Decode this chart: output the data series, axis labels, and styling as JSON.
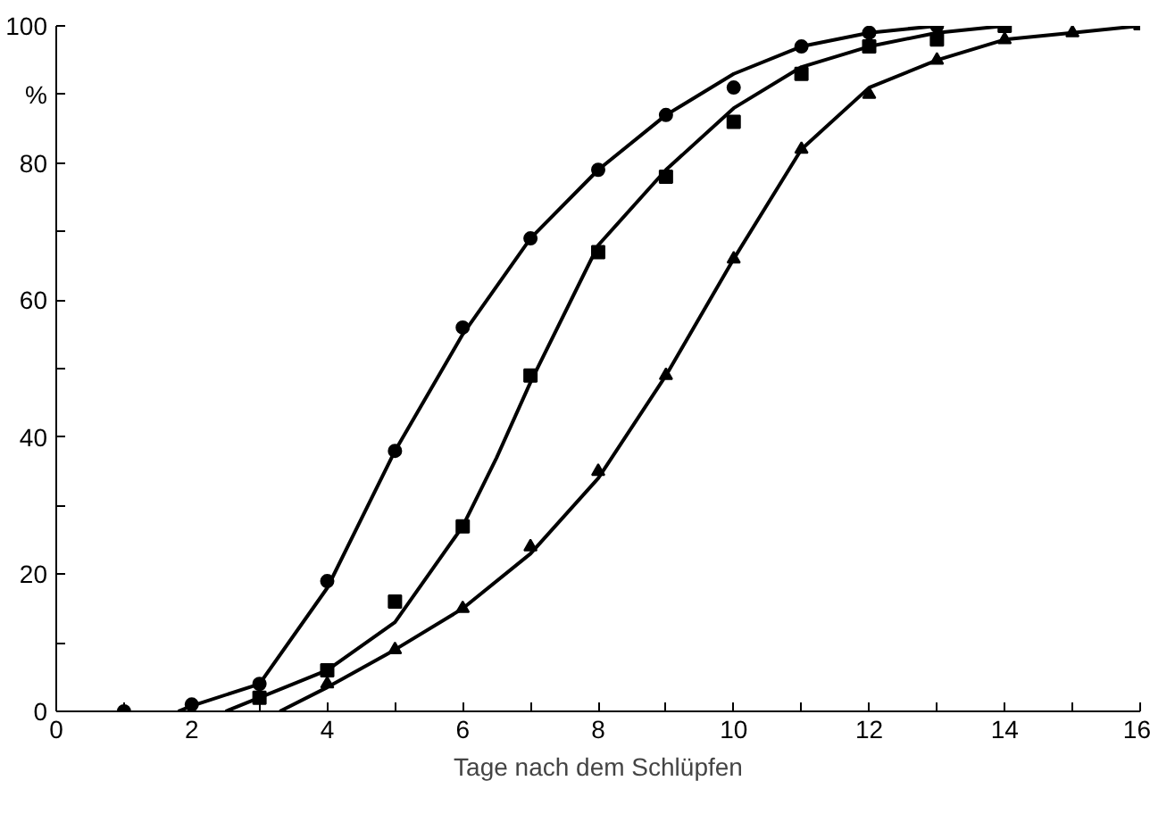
{
  "chart_data": {
    "type": "scatter",
    "xlabel": "Tage nach dem Schlüpfen",
    "ylabel": "%",
    "xlim": [
      0,
      16
    ],
    "ylim": [
      0,
      100
    ],
    "xticks": [
      0,
      {
        "value": 1,
        "label": null
      },
      2,
      {
        "value": 3,
        "label": null
      },
      4,
      {
        "value": 5,
        "label": null
      },
      6,
      {
        "value": 7,
        "label": null
      },
      8,
      {
        "value": 9,
        "label": null
      },
      10,
      {
        "value": 11,
        "label": null
      },
      12,
      {
        "value": 13,
        "label": null
      },
      14,
      {
        "value": 15,
        "label": null
      },
      16
    ],
    "yticks": [
      0,
      {
        "value": 10,
        "label": null
      },
      20,
      {
        "value": 30,
        "label": null
      },
      40,
      {
        "value": 50,
        "label": null
      },
      60,
      {
        "value": 70,
        "label": null
      },
      80,
      {
        "value": 90,
        "label": null
      },
      100
    ],
    "grid": false,
    "series": [
      {
        "type": "line",
        "marker": "none",
        "color": "#000000",
        "x": [
          1.8,
          2,
          3,
          4,
          4.5,
          5,
          6,
          7,
          8,
          9,
          10,
          11,
          12,
          13
        ],
        "values": [
          0,
          0.8,
          4,
          18,
          28,
          38,
          55,
          69,
          79,
          87,
          93,
          97,
          99,
          100
        ]
      },
      {
        "type": "line",
        "marker": "none",
        "color": "#000000",
        "x": [
          2.5,
          3,
          4,
          5,
          6,
          6.5,
          7,
          8,
          9,
          10,
          11,
          12,
          13,
          14
        ],
        "values": [
          0,
          2,
          6,
          13,
          27,
          37,
          48,
          68,
          79,
          88,
          94,
          97,
          99,
          100
        ]
      },
      {
        "type": "line",
        "marker": "none",
        "color": "#000000",
        "x": [
          3.3,
          4,
          5,
          6,
          7,
          8,
          9,
          10,
          11,
          12,
          13,
          14,
          15,
          16
        ],
        "values": [
          0,
          3.5,
          9,
          15,
          23,
          34,
          49,
          66,
          82,
          91,
          95,
          98,
          99,
          100
        ]
      },
      {
        "marker": "triangle",
        "color": "#000000",
        "x": [
          4,
          5,
          6,
          7,
          8,
          9,
          10,
          11,
          12,
          13,
          14,
          15,
          16
        ],
        "values": [
          4,
          9,
          15,
          24,
          35,
          49,
          66,
          82,
          90,
          95,
          98,
          99,
          100
        ]
      },
      {
        "marker": "square",
        "color": "#000000",
        "x": [
          3,
          4,
          5,
          6,
          7,
          8,
          9,
          10,
          11,
          12,
          13,
          14
        ],
        "values": [
          2,
          6,
          16,
          27,
          49,
          67,
          78,
          86,
          93,
          97,
          98,
          100
        ]
      },
      {
        "marker": "circle",
        "color": "#000000",
        "x": [
          1,
          2,
          3,
          4,
          5,
          6,
          7,
          8,
          9,
          10,
          11,
          12,
          13
        ],
        "values": [
          0,
          1,
          4,
          19,
          38,
          56,
          69,
          79,
          87,
          91,
          97,
          99,
          100
        ]
      }
    ]
  }
}
